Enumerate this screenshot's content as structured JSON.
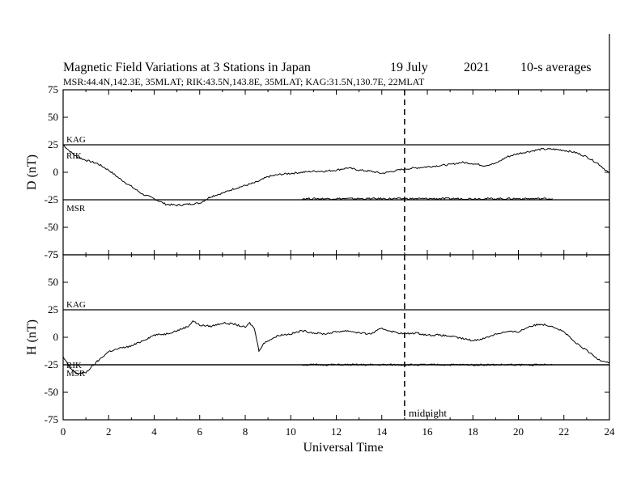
{
  "header": {
    "title": "Magnetic Field Variations at 3 Stations in Japan",
    "date": "19 July",
    "year": "2021",
    "averaging": "10-s averages",
    "stations": "MSR:44.4N,142.3E, 35MLAT;  RIK:43.5N,143.8E, 35MLAT;  KAG:31.5N,130.7E, 22MLAT"
  },
  "annotations": {
    "midnight": "midnight"
  },
  "chart_data": [
    {
      "type": "line",
      "panel": "D",
      "ylabel": "D (nT)",
      "ylim": [
        -75,
        75
      ],
      "yticks": [
        75,
        50,
        25,
        0,
        -25,
        -50,
        -75
      ],
      "xlim": [
        0,
        24
      ],
      "baselines": [
        {
          "name": "KAG",
          "value": 25
        },
        {
          "name": "MSR",
          "value": -25
        }
      ],
      "series": [
        {
          "name": "RIK",
          "x": [
            0,
            0.3,
            0.6,
            1,
            1.5,
            2,
            2.5,
            3,
            3.5,
            4,
            4.5,
            5,
            5.5,
            6,
            6.5,
            7,
            7.5,
            8,
            8.5,
            9,
            9.5,
            10,
            10.5,
            11,
            11.5,
            12,
            12.5,
            13,
            13.5,
            14,
            14.5,
            15,
            15.5,
            16,
            16.5,
            17,
            17.5,
            18,
            18.5,
            19,
            19.5,
            20,
            20.5,
            21,
            21.5,
            22,
            22.5,
            23,
            23.5,
            24
          ],
          "values": [
            25,
            19,
            14,
            11,
            8,
            2,
            -6,
            -13,
            -20,
            -24,
            -29,
            -30,
            -29,
            -28,
            -22,
            -19,
            -15,
            -12,
            -9,
            -4,
            -2,
            -1,
            0,
            1,
            1,
            2,
            4,
            2,
            1,
            -1,
            1,
            3,
            4,
            5,
            6,
            7,
            9,
            8,
            6,
            8,
            14,
            17,
            19,
            21,
            21,
            20,
            18,
            14,
            8,
            -1
          ]
        },
        {
          "name": "MSR",
          "x": [
            10.5,
            12,
            14,
            16,
            18,
            20,
            21.5
          ],
          "values": [
            -24,
            -24,
            -24,
            -24,
            -24,
            -24,
            -24
          ]
        }
      ]
    },
    {
      "type": "line",
      "panel": "H",
      "ylabel": "H (nT)",
      "xlabel": "Universal Time",
      "ylim": [
        -75,
        75
      ],
      "yticks": [
        75,
        50,
        25,
        0,
        -25,
        -50,
        -75
      ],
      "xlim": [
        0,
        24
      ],
      "xticks": [
        0,
        2,
        4,
        6,
        8,
        10,
        12,
        14,
        16,
        18,
        20,
        22,
        24
      ],
      "vline": 15,
      "baselines": [
        {
          "name": "KAG",
          "value": 25
        },
        {
          "name": "RIK",
          "value": -25
        },
        {
          "name": "MSR",
          "value": -25
        }
      ],
      "series": [
        {
          "name": "H",
          "x": [
            0,
            0.3,
            0.6,
            1,
            1.5,
            2,
            2.5,
            3,
            3.5,
            4,
            4.5,
            5,
            5.5,
            5.7,
            6,
            6.5,
            7,
            7.5,
            8,
            8.2,
            8.4,
            8.6,
            8.8,
            9,
            9.5,
            10,
            10.5,
            11,
            11.5,
            12,
            12.5,
            13,
            13.5,
            14,
            14.5,
            15,
            15.5,
            16,
            16.5,
            17,
            17.5,
            18,
            18.5,
            19,
            19.5,
            20,
            20.5,
            21,
            21.5,
            22,
            22.5,
            23,
            23.5,
            24
          ],
          "values": [
            -18,
            -28,
            -33,
            -32,
            -22,
            -13,
            -10,
            -8,
            -3,
            2,
            3,
            6,
            10,
            15,
            11,
            10,
            13,
            12,
            9,
            13,
            8,
            -12,
            -6,
            -3,
            2,
            3,
            6,
            4,
            3,
            5,
            6,
            4,
            3,
            8,
            5,
            3,
            4,
            2,
            2,
            1,
            -1,
            -3,
            -1,
            3,
            5,
            5,
            10,
            12,
            10,
            5,
            -5,
            -12,
            -20,
            -23
          ]
        },
        {
          "name": "MSR",
          "x": [
            10.5,
            12,
            14,
            16,
            18,
            20,
            21.5
          ],
          "values": [
            -25,
            -25,
            -25,
            -25,
            -25,
            -25,
            -25
          ]
        }
      ]
    }
  ]
}
